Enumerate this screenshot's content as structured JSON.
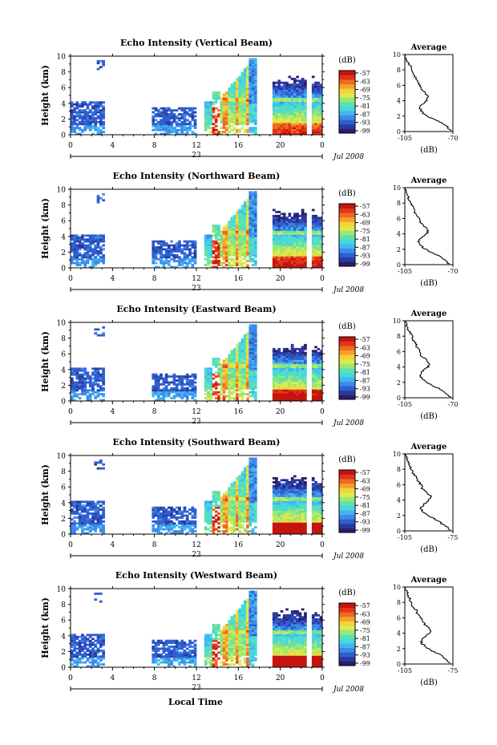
{
  "figure": {
    "xaxis_label": "Local Time",
    "date_label": "Jul 2008",
    "day_label": "23"
  },
  "colormap": [
    "#2b1d6b",
    "#2b3a9e",
    "#2f5fd0",
    "#3d8ae8",
    "#43b6f0",
    "#45d8e0",
    "#5ee0b0",
    "#9ae870",
    "#d8ec50",
    "#f6d23a",
    "#f5a02a",
    "#ef6a20",
    "#e23418",
    "#c5140e"
  ],
  "chart_data": [
    {
      "type": "heatmap",
      "title": "Echo Intensity (Vertical Beam)",
      "ylabel": "Height (km)",
      "ylim": [
        0,
        10
      ],
      "yticks": [
        0,
        2,
        4,
        6,
        8,
        10
      ],
      "xticks": [
        "0",
        "4",
        "8",
        "12",
        "16",
        "20",
        "0"
      ],
      "colorbar": {
        "label": "(dB)",
        "ticks": [
          "-57",
          "-63",
          "-69",
          "-75",
          "-81",
          "-87",
          "-93",
          "-99"
        ]
      },
      "average_profile": {
        "title": "Average",
        "xlabel": "(dB)",
        "xlim": [
          -105,
          -70
        ],
        "xticks": [
          "-105",
          "-70"
        ],
        "ylim": [
          0,
          10
        ],
        "yticks": [
          0,
          2,
          4,
          6,
          8,
          10
        ],
        "points": [
          [
            -72,
            0.1
          ],
          [
            -74,
            0.6
          ],
          [
            -78,
            1.1
          ],
          [
            -84,
            1.6
          ],
          [
            -90,
            2.1
          ],
          [
            -93,
            2.6
          ],
          [
            -94,
            3.0
          ],
          [
            -93,
            3.5
          ],
          [
            -89,
            4.0
          ],
          [
            -88,
            4.5
          ],
          [
            -90,
            5.0
          ],
          [
            -93,
            5.5
          ],
          [
            -94,
            6.0
          ],
          [
            -96,
            6.5
          ],
          [
            -97,
            7.0
          ],
          [
            -99,
            7.5
          ],
          [
            -100,
            8.0
          ],
          [
            -101,
            8.5
          ],
          [
            -103,
            9.0
          ],
          [
            -104,
            9.5
          ],
          [
            -105,
            10
          ]
        ]
      }
    },
    {
      "type": "heatmap",
      "title": "Echo Intensity (Northward Beam)",
      "ylabel": "Height (km)",
      "ylim": [
        0,
        10
      ],
      "yticks": [
        0,
        2,
        4,
        6,
        8,
        10
      ],
      "xticks": [
        "0",
        "4",
        "8",
        "12",
        "16",
        "20",
        "0"
      ],
      "colorbar": {
        "label": "(dB)",
        "ticks": [
          "-57",
          "-63",
          "-69",
          "-75",
          "-81",
          "-87",
          "-93",
          "-99"
        ]
      },
      "average_profile": {
        "title": "Average",
        "xlabel": "(dB)",
        "xlim": [
          -105,
          -70
        ],
        "xticks": [
          "-105",
          "-70"
        ],
        "ylim": [
          0,
          10
        ],
        "yticks": [
          0,
          2,
          4,
          6,
          8,
          10
        ],
        "points": [
          [
            -73,
            0.1
          ],
          [
            -76,
            0.6
          ],
          [
            -80,
            1.1
          ],
          [
            -86,
            1.6
          ],
          [
            -91,
            2.1
          ],
          [
            -94,
            2.6
          ],
          [
            -95,
            3.0
          ],
          [
            -93,
            3.5
          ],
          [
            -89,
            4.0
          ],
          [
            -88,
            4.5
          ],
          [
            -91,
            5.0
          ],
          [
            -94,
            5.5
          ],
          [
            -95,
            6.0
          ],
          [
            -97,
            6.5
          ],
          [
            -98,
            7.0
          ],
          [
            -99,
            7.5
          ],
          [
            -101,
            8.0
          ],
          [
            -102,
            8.5
          ],
          [
            -103,
            9.0
          ],
          [
            -104,
            9.5
          ],
          [
            -105,
            10
          ]
        ]
      }
    },
    {
      "type": "heatmap",
      "title": "Echo Intensity (Eastward Beam)",
      "ylabel": "Height (km)",
      "ylim": [
        0,
        10
      ],
      "yticks": [
        0,
        2,
        4,
        6,
        8,
        10
      ],
      "xticks": [
        "0",
        "4",
        "8",
        "12",
        "16",
        "20",
        "0"
      ],
      "colorbar": {
        "label": "(dB)",
        "ticks": [
          "-57",
          "-63",
          "-69",
          "-75",
          "-81",
          "-87",
          "-93",
          "-99"
        ]
      },
      "average_profile": {
        "title": "Average",
        "xlabel": "(dB)",
        "xlim": [
          -105,
          -70
        ],
        "xticks": [
          "-105",
          "-70"
        ],
        "ylim": [
          0,
          10
        ],
        "yticks": [
          0,
          2,
          4,
          6,
          8,
          10
        ],
        "points": [
          [
            -72,
            0.1
          ],
          [
            -75,
            0.6
          ],
          [
            -79,
            1.1
          ],
          [
            -85,
            1.6
          ],
          [
            -90,
            2.1
          ],
          [
            -93,
            2.6
          ],
          [
            -94,
            3.0
          ],
          [
            -92,
            3.5
          ],
          [
            -88,
            4.0
          ],
          [
            -87,
            4.5
          ],
          [
            -90,
            5.0
          ],
          [
            -93,
            5.5
          ],
          [
            -94,
            6.0
          ],
          [
            -96,
            6.5
          ],
          [
            -97,
            7.0
          ],
          [
            -99,
            7.5
          ],
          [
            -100,
            8.0
          ],
          [
            -101,
            8.5
          ],
          [
            -103,
            9.0
          ],
          [
            -104,
            9.5
          ],
          [
            -105,
            10
          ]
        ]
      }
    },
    {
      "type": "heatmap",
      "title": "Echo Intensity (Southward Beam)",
      "ylabel": "Height (km)",
      "ylim": [
        0,
        10
      ],
      "yticks": [
        0,
        2,
        4,
        6,
        8,
        10
      ],
      "xticks": [
        "0",
        "4",
        "8",
        "12",
        "16",
        "20",
        "0"
      ],
      "colorbar": {
        "label": "(dB)",
        "ticks": [
          "-57",
          "-63",
          "-69",
          "-75",
          "-81",
          "-87",
          "-93",
          "-99"
        ]
      },
      "average_profile": {
        "title": "Average",
        "xlabel": "(dB)",
        "xlim": [
          -105,
          -75
        ],
        "xticks": [
          "-105",
          "-75"
        ],
        "ylim": [
          0,
          10
        ],
        "yticks": [
          0,
          2,
          4,
          6,
          8,
          10
        ],
        "points": [
          [
            -77,
            0.1
          ],
          [
            -79,
            0.6
          ],
          [
            -83,
            1.1
          ],
          [
            -87,
            1.6
          ],
          [
            -92,
            2.1
          ],
          [
            -94,
            2.6
          ],
          [
            -95,
            3.0
          ],
          [
            -93,
            3.5
          ],
          [
            -90,
            4.0
          ],
          [
            -89,
            4.5
          ],
          [
            -92,
            5.0
          ],
          [
            -94,
            5.5
          ],
          [
            -95,
            6.0
          ],
          [
            -97,
            6.5
          ],
          [
            -98,
            7.0
          ],
          [
            -100,
            7.5
          ],
          [
            -101,
            8.0
          ],
          [
            -102,
            8.5
          ],
          [
            -103,
            9.0
          ],
          [
            -104,
            9.5
          ],
          [
            -105,
            10
          ]
        ]
      }
    },
    {
      "type": "heatmap",
      "title": "Echo Intensity (Westward Beam)",
      "ylabel": "Height (km)",
      "ylim": [
        0,
        10
      ],
      "yticks": [
        0,
        2,
        4,
        6,
        8,
        10
      ],
      "xticks": [
        "0",
        "4",
        "8",
        "12",
        "16",
        "20",
        "0"
      ],
      "colorbar": {
        "label": "(dB)",
        "ticks": [
          "-57",
          "-63",
          "-69",
          "-75",
          "-81",
          "-87",
          "-93",
          "-99"
        ]
      },
      "average_profile": {
        "title": "Average",
        "xlabel": "(dB)",
        "xlim": [
          -105,
          -75
        ],
        "xticks": [
          "-105",
          "-75"
        ],
        "ylim": [
          0,
          10
        ],
        "yticks": [
          0,
          2,
          4,
          6,
          8,
          10
        ],
        "points": [
          [
            -77,
            0.1
          ],
          [
            -79,
            0.6
          ],
          [
            -82,
            1.1
          ],
          [
            -87,
            1.6
          ],
          [
            -91,
            2.1
          ],
          [
            -94,
            2.6
          ],
          [
            -95,
            3.0
          ],
          [
            -93,
            3.5
          ],
          [
            -90,
            4.0
          ],
          [
            -89,
            4.5
          ],
          [
            -92,
            5.0
          ],
          [
            -94,
            5.5
          ],
          [
            -95,
            6.0
          ],
          [
            -97,
            6.5
          ],
          [
            -98,
            7.0
          ],
          [
            -100,
            7.5
          ],
          [
            -101,
            8.0
          ],
          [
            -102,
            8.5
          ],
          [
            -103,
            9.0
          ],
          [
            -104,
            9.5
          ],
          [
            -105,
            10
          ]
        ]
      }
    }
  ]
}
